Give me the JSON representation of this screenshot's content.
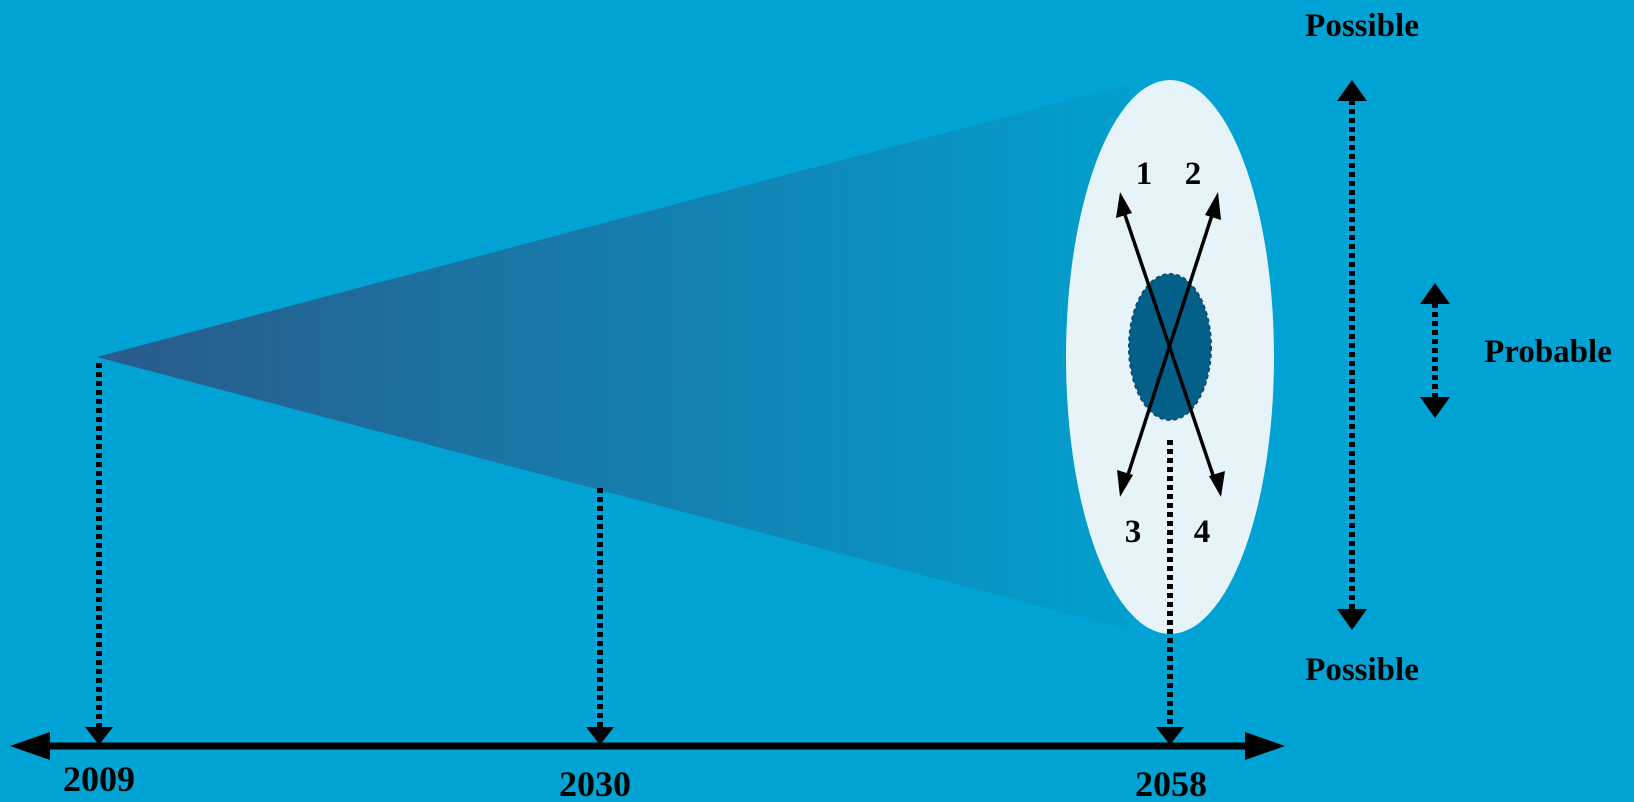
{
  "colors": {
    "background": "#00a3d3",
    "cone_start": "#2a5a8a",
    "cone_end": "#029fce",
    "outer_ellipse": "#e6f4fa",
    "inner_ellipse": "#045f89",
    "line": "#000000"
  },
  "labels": {
    "possible_top": "Possible",
    "possible_bottom": "Possible",
    "probable": "Probable"
  },
  "scenarios": [
    "1",
    "2",
    "3",
    "4"
  ],
  "timeline": {
    "years": [
      "2009",
      "2030",
      "2058"
    ]
  }
}
